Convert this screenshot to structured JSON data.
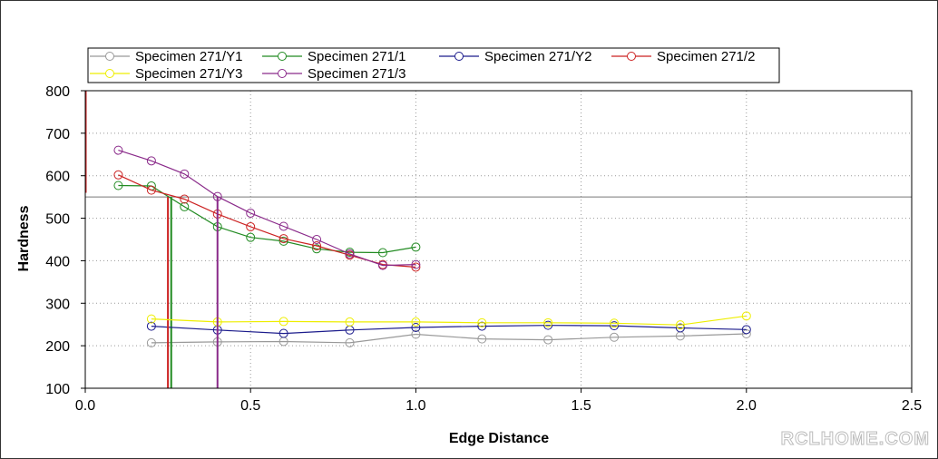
{
  "watermark": "RCLHOME.COM",
  "chart_data": {
    "type": "line",
    "xlabel": "Edge Distance",
    "ylabel": "Hardness",
    "xlim": [
      0,
      2.5
    ],
    "ylim": [
      100,
      800
    ],
    "xticks": [
      "0.0",
      "0.5",
      "1.0",
      "1.5",
      "2.0",
      "2.5"
    ],
    "yticks": [
      "100",
      "200",
      "300",
      "400",
      "500",
      "600",
      "700",
      "800"
    ],
    "grid": true,
    "legend_position": "top",
    "reference_line_y": 550,
    "series": [
      {
        "name": "Specimen 271/Y1",
        "color": "#999999",
        "points": [
          [
            0.2,
            207
          ],
          [
            0.4,
            209
          ],
          [
            0.6,
            210
          ],
          [
            0.8,
            207
          ],
          [
            1.0,
            227
          ],
          [
            1.2,
            216
          ],
          [
            1.4,
            214
          ],
          [
            1.6,
            220
          ],
          [
            1.8,
            223
          ],
          [
            2.0,
            228
          ]
        ]
      },
      {
        "name": "Specimen 271/1",
        "color": "#228b22",
        "points": [
          [
            0.1,
            577
          ],
          [
            0.2,
            576
          ],
          [
            0.3,
            527
          ],
          [
            0.4,
            480
          ],
          [
            0.5,
            455
          ],
          [
            0.6,
            446
          ],
          [
            0.7,
            428
          ],
          [
            0.8,
            420
          ],
          [
            0.9,
            419
          ],
          [
            1.0,
            432
          ]
        ],
        "vline": 0.26
      },
      {
        "name": "Specimen 271/Y2",
        "color": "#1c1c8c",
        "points": [
          [
            0.2,
            246
          ],
          [
            0.4,
            237
          ],
          [
            0.6,
            229
          ],
          [
            0.8,
            237
          ],
          [
            1.0,
            243
          ],
          [
            1.2,
            246
          ],
          [
            1.4,
            248
          ],
          [
            1.6,
            247
          ],
          [
            1.8,
            242
          ],
          [
            2.0,
            238
          ]
        ]
      },
      {
        "name": "Specimen 271/2",
        "color": "#cc2222",
        "points": [
          [
            0.1,
            602
          ],
          [
            0.2,
            566
          ],
          [
            0.3,
            545
          ],
          [
            0.4,
            510
          ],
          [
            0.5,
            480
          ],
          [
            0.6,
            452
          ],
          [
            0.7,
            435
          ],
          [
            0.8,
            413
          ],
          [
            0.9,
            391
          ],
          [
            1.0,
            385
          ]
        ],
        "vline": 0.25
      },
      {
        "name": "Specimen 271/Y3",
        "color": "#eeee00",
        "points": [
          [
            0.2,
            263
          ],
          [
            0.4,
            256
          ],
          [
            0.6,
            257
          ],
          [
            0.8,
            256
          ],
          [
            1.0,
            256
          ],
          [
            1.2,
            254
          ],
          [
            1.4,
            254
          ],
          [
            1.6,
            253
          ],
          [
            1.8,
            249
          ],
          [
            2.0,
            270
          ]
        ]
      },
      {
        "name": "Specimen 271/3",
        "color": "#8a2a8a",
        "points": [
          [
            0.1,
            660
          ],
          [
            0.2,
            635
          ],
          [
            0.3,
            604
          ],
          [
            0.4,
            551
          ],
          [
            0.5,
            512
          ],
          [
            0.6,
            481
          ],
          [
            0.7,
            450
          ],
          [
            0.8,
            416
          ],
          [
            0.9,
            389
          ],
          [
            1.0,
            391
          ]
        ],
        "vline": 0.4
      }
    ]
  }
}
